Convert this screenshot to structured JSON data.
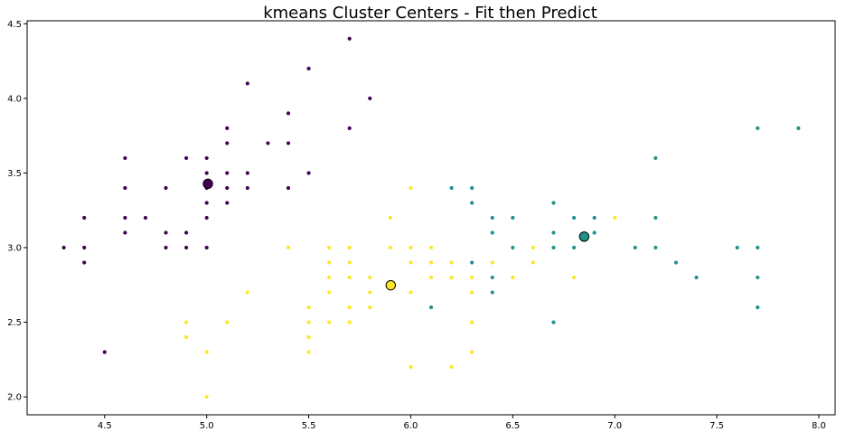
{
  "chart_data": {
    "type": "scatter",
    "title": "kmeans Cluster Centers - Fit then Predict",
    "xlabel": "",
    "ylabel": "",
    "xlim": [
      4.12,
      8.08
    ],
    "ylim": [
      1.88,
      4.52
    ],
    "xticks": [
      "4.5",
      "5.0",
      "5.5",
      "6.0",
      "6.5",
      "7.0",
      "7.5",
      "8.0"
    ],
    "yticks": [
      "2.0",
      "2.5",
      "3.0",
      "3.5",
      "4.0",
      "4.5"
    ],
    "grid": false,
    "colors": {
      "0": "#440154",
      "1": "#21918c",
      "2": "#fde725"
    },
    "points": [
      [
        5.7,
        4.4,
        0
      ],
      [
        5.5,
        4.2,
        0
      ],
      [
        5.2,
        4.1,
        0
      ],
      [
        5.8,
        4.0,
        0
      ],
      [
        5.4,
        3.9,
        0
      ],
      [
        5.1,
        3.8,
        0
      ],
      [
        5.7,
        3.8,
        0
      ],
      [
        5.1,
        3.7,
        0
      ],
      [
        5.3,
        3.7,
        0
      ],
      [
        5.4,
        3.7,
        0
      ],
      [
        4.6,
        3.6,
        0
      ],
      [
        4.9,
        3.6,
        0
      ],
      [
        5.0,
        3.6,
        0
      ],
      [
        5.0,
        3.5,
        0
      ],
      [
        5.1,
        3.5,
        0
      ],
      [
        5.2,
        3.5,
        0
      ],
      [
        5.5,
        3.5,
        0
      ],
      [
        4.6,
        3.4,
        0
      ],
      [
        4.8,
        3.4,
        0
      ],
      [
        5.0,
        3.4,
        0
      ],
      [
        5.1,
        3.4,
        0
      ],
      [
        5.2,
        3.4,
        0
      ],
      [
        5.4,
        3.4,
        0
      ],
      [
        5.0,
        3.3,
        0
      ],
      [
        5.1,
        3.3,
        0
      ],
      [
        4.4,
        3.2,
        0
      ],
      [
        4.6,
        3.2,
        0
      ],
      [
        4.7,
        3.2,
        0
      ],
      [
        5.0,
        3.2,
        0
      ],
      [
        4.6,
        3.1,
        0
      ],
      [
        4.8,
        3.1,
        0
      ],
      [
        4.9,
        3.1,
        0
      ],
      [
        4.3,
        3.0,
        0
      ],
      [
        4.4,
        3.0,
        0
      ],
      [
        4.8,
        3.0,
        0
      ],
      [
        4.9,
        3.0,
        0
      ],
      [
        5.0,
        3.0,
        0
      ],
      [
        4.4,
        2.9,
        0
      ],
      [
        4.5,
        2.3,
        0
      ],
      [
        7.7,
        3.8,
        1
      ],
      [
        7.9,
        3.8,
        1
      ],
      [
        7.2,
        3.6,
        1
      ],
      [
        6.2,
        3.4,
        1
      ],
      [
        6.3,
        3.4,
        1
      ],
      [
        6.3,
        3.3,
        1
      ],
      [
        6.7,
        3.3,
        1
      ],
      [
        6.4,
        3.2,
        1
      ],
      [
        6.5,
        3.2,
        1
      ],
      [
        6.8,
        3.2,
        1
      ],
      [
        6.9,
        3.2,
        1
      ],
      [
        7.2,
        3.2,
        1
      ],
      [
        6.4,
        3.1,
        1
      ],
      [
        6.7,
        3.1,
        1
      ],
      [
        6.9,
        3.1,
        1
      ],
      [
        6.5,
        3.0,
        1
      ],
      [
        6.7,
        3.0,
        1
      ],
      [
        6.8,
        3.0,
        1
      ],
      [
        7.1,
        3.0,
        1
      ],
      [
        7.2,
        3.0,
        1
      ],
      [
        7.6,
        3.0,
        1
      ],
      [
        7.7,
        3.0,
        1
      ],
      [
        6.3,
        2.9,
        1
      ],
      [
        7.3,
        2.9,
        1
      ],
      [
        6.4,
        2.8,
        1
      ],
      [
        7.4,
        2.8,
        1
      ],
      [
        7.7,
        2.8,
        1
      ],
      [
        6.4,
        2.7,
        1
      ],
      [
        6.1,
        2.6,
        1
      ],
      [
        7.7,
        2.6,
        1
      ],
      [
        6.7,
        2.5,
        1
      ],
      [
        6.0,
        3.4,
        2
      ],
      [
        5.9,
        3.2,
        2
      ],
      [
        7.0,
        3.2,
        2
      ],
      [
        5.4,
        3.0,
        2
      ],
      [
        5.6,
        3.0,
        2
      ],
      [
        5.7,
        3.0,
        2
      ],
      [
        5.9,
        3.0,
        2
      ],
      [
        6.0,
        3.0,
        2
      ],
      [
        6.1,
        3.0,
        2
      ],
      [
        6.6,
        3.0,
        2
      ],
      [
        5.6,
        2.9,
        2
      ],
      [
        5.7,
        2.9,
        2
      ],
      [
        6.0,
        2.9,
        2
      ],
      [
        6.1,
        2.9,
        2
      ],
      [
        6.2,
        2.9,
        2
      ],
      [
        6.4,
        2.9,
        2
      ],
      [
        6.6,
        2.9,
        2
      ],
      [
        5.6,
        2.8,
        2
      ],
      [
        5.7,
        2.8,
        2
      ],
      [
        5.8,
        2.8,
        2
      ],
      [
        6.1,
        2.8,
        2
      ],
      [
        6.2,
        2.8,
        2
      ],
      [
        6.3,
        2.8,
        2
      ],
      [
        6.5,
        2.8,
        2
      ],
      [
        6.8,
        2.8,
        2
      ],
      [
        5.2,
        2.7,
        2
      ],
      [
        5.6,
        2.7,
        2
      ],
      [
        5.8,
        2.7,
        2
      ],
      [
        6.0,
        2.7,
        2
      ],
      [
        6.3,
        2.7,
        2
      ],
      [
        5.5,
        2.6,
        2
      ],
      [
        5.7,
        2.6,
        2
      ],
      [
        5.8,
        2.6,
        2
      ],
      [
        4.9,
        2.5,
        2
      ],
      [
        5.1,
        2.5,
        2
      ],
      [
        5.5,
        2.5,
        2
      ],
      [
        5.6,
        2.5,
        2
      ],
      [
        5.7,
        2.5,
        2
      ],
      [
        6.3,
        2.5,
        2
      ],
      [
        4.9,
        2.4,
        2
      ],
      [
        5.5,
        2.4,
        2
      ],
      [
        5.0,
        2.3,
        2
      ],
      [
        5.5,
        2.3,
        2
      ],
      [
        6.3,
        2.3,
        2
      ],
      [
        6.0,
        2.2,
        2
      ],
      [
        6.2,
        2.2,
        2
      ],
      [
        5.0,
        2.0,
        2
      ]
    ],
    "centers": [
      [
        5.006,
        3.428,
        0
      ],
      [
        6.85,
        3.074,
        1
      ],
      [
        5.902,
        2.748,
        2
      ]
    ]
  }
}
